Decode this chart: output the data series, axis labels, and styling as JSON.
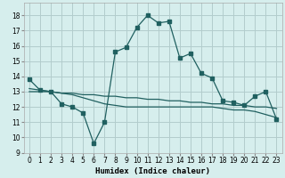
{
  "xlabel": "Humidex (Indice chaleur)",
  "background_color": "#d6eeed",
  "grid_color": "#b2cccc",
  "line_color": "#206060",
  "x_ticks": [
    0,
    1,
    2,
    3,
    4,
    5,
    6,
    7,
    8,
    9,
    10,
    11,
    12,
    13,
    14,
    15,
    16,
    17,
    18,
    19,
    20,
    21,
    22,
    23
  ],
  "y_ticks": [
    9,
    10,
    11,
    12,
    13,
    14,
    15,
    16,
    17,
    18
  ],
  "xlim": [
    -0.5,
    23.5
  ],
  "ylim": [
    9.0,
    18.8
  ],
  "line1_x": [
    0,
    1,
    2,
    3,
    4,
    5,
    6,
    7,
    8,
    9,
    10,
    11,
    12,
    13,
    14,
    15,
    16,
    17,
    18,
    19,
    20,
    21,
    22,
    23
  ],
  "line1_y": [
    13.8,
    13.1,
    13.0,
    12.2,
    12.0,
    11.6,
    9.6,
    11.0,
    15.6,
    15.9,
    17.2,
    18.0,
    17.5,
    17.6,
    15.2,
    15.5,
    14.2,
    13.9,
    12.4,
    12.3,
    12.1,
    12.7,
    13.0,
    11.2
  ],
  "line2_x": [
    0,
    1,
    2,
    3,
    4,
    5,
    6,
    7,
    8,
    9,
    10,
    11,
    12,
    13,
    14,
    15,
    16,
    17,
    18,
    19,
    20,
    21,
    22,
    23
  ],
  "line2_y": [
    13.0,
    13.0,
    13.0,
    12.9,
    12.9,
    12.8,
    12.8,
    12.7,
    12.7,
    12.6,
    12.6,
    12.5,
    12.5,
    12.4,
    12.4,
    12.3,
    12.3,
    12.2,
    12.2,
    12.1,
    12.1,
    12.0,
    12.0,
    11.9
  ],
  "line3_x": [
    0,
    1,
    2,
    3,
    4,
    5,
    6,
    7,
    8,
    9,
    10,
    11,
    12,
    13,
    14,
    15,
    16,
    17,
    18,
    19,
    20,
    21,
    22,
    23
  ],
  "line3_y": [
    13.2,
    13.1,
    13.0,
    12.9,
    12.8,
    12.6,
    12.4,
    12.2,
    12.1,
    12.0,
    12.0,
    12.0,
    12.0,
    12.0,
    12.0,
    12.0,
    12.0,
    12.0,
    11.9,
    11.8,
    11.8,
    11.7,
    11.5,
    11.3
  ],
  "tick_fontsize": 5.5,
  "xlabel_fontsize": 6.5
}
